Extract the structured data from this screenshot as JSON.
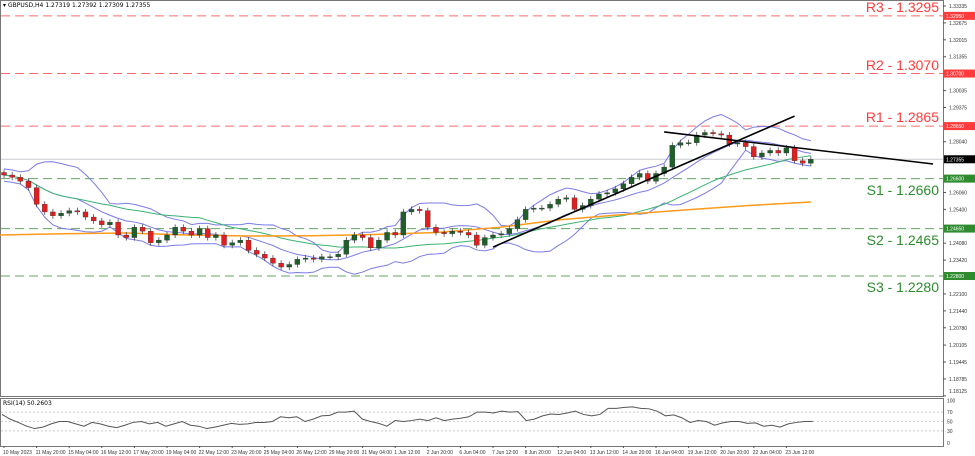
{
  "header": {
    "symbol": "GBPUSD,H4",
    "ohlc": "1.27319 1.27392 1.27309 1.27355"
  },
  "rsi_label": "RSI(14) 50.2603",
  "colors": {
    "resistance": "#ff3b3b",
    "support": "#2e8b2e",
    "bull": "#1f5f2a",
    "bear": "#e02020",
    "ma_fast": "#3cb371",
    "ma_slow": "#ff9a1a",
    "bollinger": "#7b7bea",
    "trendline": "#000000"
  },
  "chart_data": [
    {
      "type": "candlestick",
      "title": "GBPUSD,H4",
      "closes": [
        1.2674,
        1.2665,
        1.265,
        1.2625,
        1.256,
        1.253,
        1.2515,
        1.2525,
        1.2535,
        1.253,
        1.251,
        1.2495,
        1.248,
        1.249,
        1.244,
        1.243,
        1.247,
        1.2455,
        1.241,
        1.242,
        1.244,
        1.247,
        1.2455,
        1.244,
        1.2465,
        1.243,
        1.244,
        1.24,
        1.241,
        1.242,
        1.238,
        1.2365,
        1.235,
        1.233,
        1.2315,
        1.2325,
        1.2345,
        1.235,
        1.2345,
        1.2355,
        1.2355,
        1.2365,
        1.242,
        1.244,
        1.243,
        1.239,
        1.242,
        1.245,
        1.244,
        1.253,
        1.254,
        1.2535,
        1.247,
        1.245,
        1.2445,
        1.2455,
        1.245,
        1.244,
        1.24,
        1.243,
        1.244,
        1.2445,
        1.2465,
        1.25,
        1.254,
        1.2545,
        1.2545,
        1.256,
        1.258,
        1.2585,
        1.254,
        1.2555,
        1.258,
        1.26,
        1.2605,
        1.262,
        1.264,
        1.2665,
        1.268,
        1.265,
        1.268,
        1.2705,
        1.279,
        1.28,
        1.28,
        1.283,
        1.284,
        1.2835,
        1.283,
        1.2795,
        1.28,
        1.2785,
        1.2745,
        1.276,
        1.277,
        1.276,
        1.278,
        1.273,
        1.272,
        1.27355
      ],
      "slow_ma": [
        1.244,
        1.2445,
        1.2448,
        1.244,
        1.2436,
        1.2437,
        1.2442,
        1.245,
        1.247,
        1.25,
        1.252,
        1.2538,
        1.2555,
        1.2569
      ],
      "levels": [
        {
          "label": "R3 - 1.3295",
          "price": 1.3295,
          "tag": "1.32950",
          "kind": "resistance"
        },
        {
          "label": "R2 - 1.3070",
          "price": 1.307,
          "tag": "1.30700",
          "kind": "resistance"
        },
        {
          "label": "R1 - 1.2865",
          "price": 1.2865,
          "tag": "1.28650",
          "kind": "resistance"
        },
        {
          "label": "S1 - 1.2660",
          "price": 1.266,
          "tag": "1.26600",
          "kind": "support"
        },
        {
          "label": "S2 - 1.2465",
          "price": 1.2465,
          "tag": "1.24650",
          "kind": "support"
        },
        {
          "label": "S3 - 1.2280",
          "price": 1.228,
          "tag": "1.22800",
          "kind": "support"
        }
      ],
      "current_price": {
        "price": 1.27355,
        "tag": "1.27355"
      },
      "trendlines": [
        {
          "from": [
            60,
            1.2393
          ],
          "to": [
            97,
            1.2904
          ]
        },
        {
          "from": [
            81,
            1.2842
          ],
          "to": [
            114,
            1.2717
          ]
        }
      ],
      "y_ticks": [
        "1.33335",
        "1.32675",
        "1.32015",
        "1.31355",
        "1.30035",
        "1.29375",
        "1.28040",
        "1.26060",
        "1.25400",
        "1.24080",
        "1.23420",
        "1.22100",
        "1.21440",
        "1.20780",
        "1.20105",
        "1.19445",
        "1.18785",
        "1.18125"
      ],
      "ylim": [
        1.18125,
        1.33335
      ],
      "x_ticks": [
        "10 May 2023",
        "11 May 20:00",
        "15 May 04:00",
        "16 May 12:00",
        "17 May 20:00",
        "19 May 04:00",
        "22 May 12:00",
        "23 May 20:00",
        "25 May 04:00",
        "26 May 12:00",
        "29 May 20:00",
        "31 May 04:00",
        "1 Jun 12:00",
        "2 Jun 20:00",
        "6 Jun 04:00",
        "7 Jun 12:00",
        "8 Jun 20:00",
        "12 Jun 04:00",
        "13 Jun 12:00",
        "14 Jun 20:00",
        "16 Jun 04:00",
        "19 Jun 12:00",
        "20 Jun 20:00",
        "22 Jun 04:00",
        "23 Jun 12:00"
      ]
    },
    {
      "type": "line",
      "title": "RSI(14) 50.2603",
      "values": [
        65,
        55,
        48,
        40,
        35,
        38,
        45,
        50,
        50,
        45,
        40,
        48,
        45,
        40,
        37,
        42,
        48,
        50,
        45,
        48,
        40,
        45,
        50,
        42,
        40,
        35,
        38,
        42,
        46,
        44,
        45,
        48,
        48,
        50,
        60,
        58,
        60,
        50,
        55,
        62,
        63,
        70,
        70,
        72,
        55,
        50,
        46,
        40,
        52,
        50,
        52,
        55,
        52,
        58,
        52,
        55,
        57,
        60,
        70,
        70,
        68,
        72,
        70,
        71,
        52,
        55,
        62,
        66,
        65,
        68,
        72,
        65,
        62,
        65,
        78,
        78,
        80,
        81,
        78,
        77,
        72,
        62,
        64,
        58,
        48,
        52,
        50,
        42,
        47,
        50,
        50,
        46,
        47,
        40,
        42,
        38,
        45,
        48,
        50,
        50.26
      ],
      "levels": [
        70,
        50,
        30
      ],
      "y_ticks": [
        "100",
        "70",
        "50",
        "30",
        "0"
      ],
      "ylim": [
        0,
        100
      ]
    }
  ]
}
